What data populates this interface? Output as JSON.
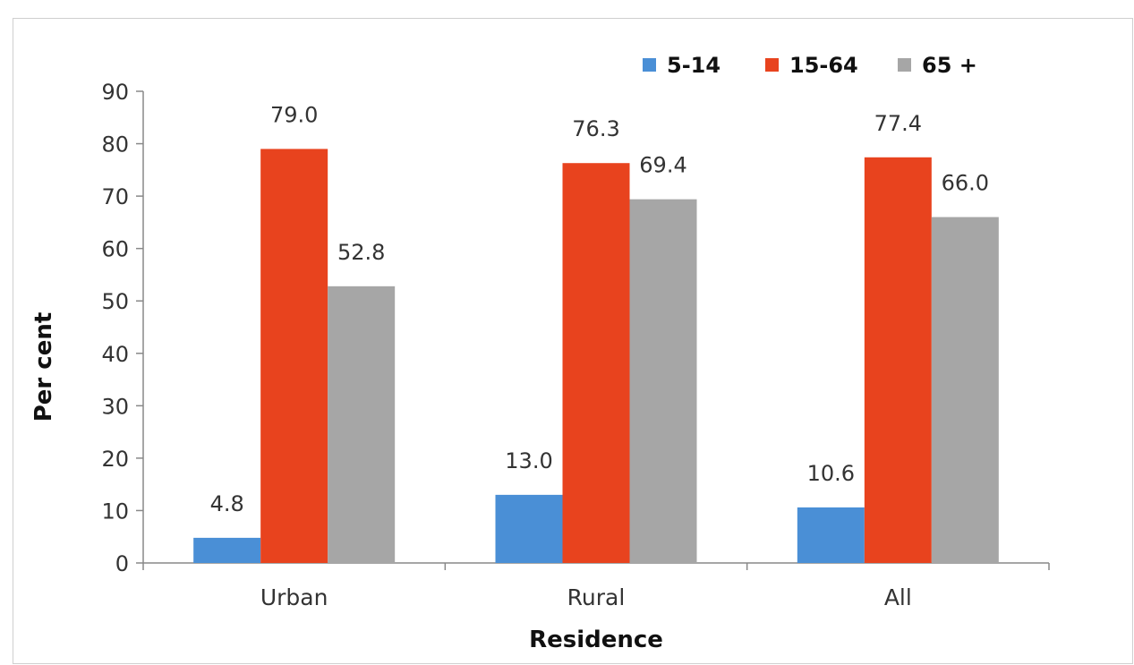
{
  "chart_data": {
    "type": "bar",
    "categories": [
      "Urban",
      "Rural",
      "All"
    ],
    "series": [
      {
        "name": "5-14",
        "color": "#4a8fd6",
        "values": [
          4.8,
          13.0,
          10.6
        ]
      },
      {
        "name": "15-64",
        "color": "#e8431e",
        "values": [
          79.0,
          76.3,
          77.4
        ]
      },
      {
        "name": "65 +",
        "color": "#a6a6a6",
        "values": [
          52.8,
          69.4,
          66.0
        ]
      }
    ],
    "title": "",
    "xlabel": "Residence",
    "ylabel": "Per cent",
    "ylim": [
      0,
      90
    ],
    "yticks": [
      0,
      10,
      20,
      30,
      40,
      50,
      60,
      70,
      80,
      90
    ],
    "legend_position": "top-right",
    "grid": false
  }
}
